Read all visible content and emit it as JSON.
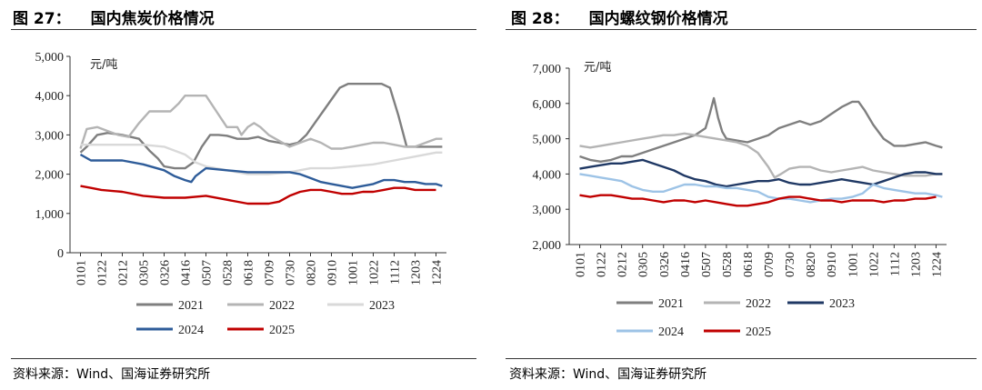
{
  "left": {
    "title_num": "图 27：",
    "title_text": "国内焦炭价格情况",
    "source": "资料来源：Wind、国海证券研究所"
  },
  "right": {
    "title_num": "图 28：",
    "title_text": "国内螺纹钢价格情况",
    "source": "资料来源：Wind、国海证券研究所"
  },
  "colors": {
    "2021": "#7f7f7f",
    "2022": "#b4b4b4",
    "2023": "#d9d9d9",
    "2023b": "#1f3864",
    "2024": "#2e5c99",
    "2024b": "#9dc3e6",
    "2025": "#c00000"
  },
  "chart_data": [
    {
      "type": "line",
      "title": "国内焦炭价格情况",
      "unit_label": "元/吨",
      "ylim": [
        0,
        5000
      ],
      "yticks": [
        0,
        1000,
        2000,
        3000,
        4000,
        5000
      ],
      "ytick_labels": [
        "0",
        "1,000",
        "2,000",
        "3,000",
        "4,000",
        "5,000"
      ],
      "x_ticks": [
        "0101",
        "0122",
        "0212",
        "0305",
        "0326",
        "0416",
        "0507",
        "0528",
        "0618",
        "0709",
        "0730",
        "0820",
        "0910",
        "1001",
        "1022",
        "1112",
        "1203",
        "1224"
      ],
      "legend": [
        "2021",
        "2022",
        "2023",
        "2024",
        "2025"
      ],
      "series": [
        {
          "name": "2021",
          "color_key": "2021",
          "x": [
            0,
            0.3,
            0.8,
            1.3,
            2.0,
            2.8,
            3.3,
            3.7,
            4.0,
            4.5,
            5.0,
            5.4,
            5.8,
            6.2,
            6.6,
            7.0,
            7.5,
            8.0,
            8.5,
            9.0,
            9.5,
            10.0,
            10.4,
            10.8,
            11.2,
            11.6,
            12.0,
            12.4,
            12.8,
            13.2,
            13.6,
            14.0,
            14.4,
            14.8,
            15.2,
            15.6,
            16.0,
            16.5,
            17.0,
            17.3
          ],
          "values": [
            2550,
            2700,
            3000,
            3050,
            3000,
            2900,
            2600,
            2400,
            2200,
            2150,
            2150,
            2300,
            2700,
            3000,
            3000,
            2980,
            2900,
            2900,
            2950,
            2850,
            2800,
            2750,
            2800,
            3000,
            3300,
            3600,
            3900,
            4200,
            4300,
            4300,
            4300,
            4300,
            4300,
            4200,
            3500,
            2700,
            2700,
            2700,
            2700,
            2700
          ]
        },
        {
          "name": "2022",
          "color_key": "2022",
          "x": [
            0,
            0.3,
            0.8,
            1.3,
            1.8,
            2.3,
            2.8,
            3.3,
            3.8,
            4.3,
            4.7,
            5.0,
            5.5,
            6.0,
            6.5,
            7.0,
            7.5,
            7.7,
            8.0,
            8.3,
            8.6,
            9.0,
            9.5,
            10.0,
            10.5,
            11.0,
            11.5,
            12.0,
            12.5,
            13.0,
            13.5,
            14.0,
            14.5,
            15.0,
            15.5,
            16.0,
            16.5,
            17.0,
            17.3
          ],
          "values": [
            2650,
            3150,
            3200,
            3100,
            3000,
            2950,
            3300,
            3600,
            3600,
            3600,
            3800,
            4000,
            4000,
            4000,
            3600,
            3200,
            3200,
            3000,
            3200,
            3300,
            3200,
            3000,
            2850,
            2700,
            2800,
            2900,
            2800,
            2650,
            2650,
            2700,
            2750,
            2800,
            2800,
            2750,
            2700,
            2700,
            2800,
            2900,
            2900
          ]
        },
        {
          "name": "2023",
          "color_key": "2023",
          "x": [
            0,
            1.0,
            2.0,
            3.0,
            4.0,
            5.0,
            5.5,
            6.0,
            7.0,
            8.0,
            9.0,
            10.0,
            11.0,
            12.0,
            13.0,
            14.0,
            15.0,
            16.0,
            17.0,
            17.3
          ],
          "values": [
            2750,
            2750,
            2750,
            2750,
            2700,
            2500,
            2300,
            2200,
            2100,
            2000,
            2000,
            2050,
            2150,
            2150,
            2200,
            2250,
            2350,
            2450,
            2550,
            2550
          ]
        },
        {
          "name": "2024",
          "color_key": "2024",
          "x": [
            0,
            0.5,
            1.0,
            2.0,
            3.0,
            4.0,
            4.5,
            5.0,
            5.3,
            5.5,
            6.0,
            7.0,
            8.0,
            9.0,
            10.0,
            10.5,
            11.0,
            11.5,
            12.0,
            12.5,
            13.0,
            13.5,
            14.0,
            14.5,
            15.0,
            15.5,
            16.0,
            16.5,
            17.0,
            17.3
          ],
          "values": [
            2500,
            2350,
            2350,
            2350,
            2250,
            2100,
            1950,
            1850,
            1800,
            1950,
            2150,
            2100,
            2050,
            2050,
            2050,
            2000,
            1900,
            1800,
            1750,
            1700,
            1650,
            1700,
            1750,
            1850,
            1850,
            1800,
            1800,
            1750,
            1750,
            1700
          ]
        },
        {
          "name": "2025",
          "color_key": "2025",
          "x": [
            0,
            0.5,
            1.0,
            2.0,
            3.0,
            4.0,
            5.0,
            6.0,
            7.0,
            8.0,
            8.5,
            9.0,
            9.5,
            10.0,
            10.5,
            11.0,
            11.5,
            12.0,
            12.5,
            13.0,
            13.5,
            14.0,
            14.5,
            15.0,
            15.5,
            16.0,
            16.5,
            17.0
          ],
          "values": [
            1700,
            1650,
            1600,
            1550,
            1450,
            1400,
            1400,
            1450,
            1350,
            1250,
            1250,
            1250,
            1300,
            1450,
            1550,
            1600,
            1600,
            1550,
            1500,
            1500,
            1550,
            1550,
            1600,
            1650,
            1650,
            1600,
            1600,
            1600
          ]
        }
      ]
    },
    {
      "type": "line",
      "title": "国内螺纹钢价格情况",
      "unit_label": "元/吨",
      "ylim": [
        2000,
        7000
      ],
      "yticks": [
        2000,
        3000,
        4000,
        5000,
        6000,
        7000
      ],
      "ytick_labels": [
        "2,000",
        "3,000",
        "4,000",
        "5,000",
        "6,000",
        "7,000"
      ],
      "x_ticks": [
        "0101",
        "0122",
        "0212",
        "0305",
        "0326",
        "0416",
        "0507",
        "0528",
        "0618",
        "0709",
        "0730",
        "0820",
        "0910",
        "1001",
        "1022",
        "1112",
        "1203",
        "1224"
      ],
      "legend": [
        "2021",
        "2022",
        "2023",
        "2024",
        "2025"
      ],
      "series": [
        {
          "name": "2021",
          "color_key": "2021",
          "x": [
            0,
            0.5,
            1.0,
            1.5,
            2.0,
            2.5,
            3.0,
            3.5,
            4.0,
            4.5,
            5.0,
            5.5,
            6.0,
            6.2,
            6.4,
            6.6,
            6.8,
            7.0,
            7.5,
            8.0,
            8.5,
            9.0,
            9.5,
            10.0,
            10.5,
            11.0,
            11.5,
            12.0,
            12.5,
            13.0,
            13.3,
            13.6,
            14.0,
            14.5,
            15.0,
            15.5,
            16.0,
            16.5,
            17.0,
            17.3
          ],
          "values": [
            4500,
            4400,
            4350,
            4400,
            4500,
            4500,
            4600,
            4700,
            4800,
            4900,
            5000,
            5100,
            5300,
            5700,
            6150,
            5600,
            5200,
            5000,
            4950,
            4900,
            5000,
            5100,
            5300,
            5400,
            5500,
            5400,
            5500,
            5700,
            5900,
            6050,
            6050,
            5800,
            5400,
            5000,
            4800,
            4800,
            4850,
            4900,
            4800,
            4750
          ]
        },
        {
          "name": "2022",
          "color_key": "2022",
          "x": [
            0,
            0.5,
            1.0,
            1.5,
            2.0,
            2.5,
            3.0,
            3.5,
            4.0,
            4.5,
            5.0,
            5.5,
            6.0,
            6.5,
            7.0,
            7.5,
            8.0,
            8.5,
            9.0,
            9.3,
            9.6,
            10.0,
            10.5,
            11.0,
            11.5,
            12.0,
            12.5,
            13.0,
            13.5,
            14.0,
            14.5,
            15.0,
            15.5,
            16.0,
            16.5,
            17.0,
            17.3
          ],
          "values": [
            4800,
            4750,
            4800,
            4850,
            4900,
            4950,
            5000,
            5050,
            5100,
            5100,
            5150,
            5100,
            5050,
            5000,
            4950,
            4900,
            4800,
            4600,
            4200,
            3900,
            4000,
            4150,
            4200,
            4200,
            4100,
            4050,
            4100,
            4150,
            4200,
            4100,
            4050,
            4000,
            3950,
            3950,
            3950,
            4000,
            4000
          ]
        },
        {
          "name": "2023",
          "color_key": "2023b",
          "x": [
            0,
            0.5,
            1.0,
            1.5,
            2.0,
            2.5,
            3.0,
            3.5,
            4.0,
            4.5,
            5.0,
            5.5,
            6.0,
            6.5,
            7.0,
            7.5,
            8.0,
            8.5,
            9.0,
            9.5,
            10.0,
            10.5,
            11.0,
            11.5,
            12.0,
            12.5,
            13.0,
            13.5,
            14.0,
            14.5,
            15.0,
            15.5,
            16.0,
            16.5,
            17.0,
            17.3
          ],
          "values": [
            4150,
            4200,
            4250,
            4300,
            4300,
            4350,
            4400,
            4300,
            4200,
            4100,
            3950,
            3850,
            3800,
            3700,
            3650,
            3700,
            3750,
            3800,
            3800,
            3850,
            3750,
            3700,
            3700,
            3750,
            3800,
            3850,
            3800,
            3750,
            3700,
            3800,
            3900,
            4000,
            4050,
            4050,
            4000,
            4000
          ]
        },
        {
          "name": "2024",
          "color_key": "2024b",
          "x": [
            0,
            0.5,
            1.0,
            1.5,
            2.0,
            2.5,
            3.0,
            3.5,
            4.0,
            4.5,
            5.0,
            5.5,
            6.0,
            6.5,
            7.0,
            7.5,
            8.0,
            8.5,
            9.0,
            9.5,
            10.0,
            10.5,
            11.0,
            11.5,
            12.0,
            12.5,
            13.0,
            13.5,
            14.0,
            14.5,
            15.0,
            15.5,
            16.0,
            16.5,
            17.0,
            17.3
          ],
          "values": [
            4000,
            3950,
            3900,
            3850,
            3800,
            3650,
            3550,
            3500,
            3500,
            3600,
            3700,
            3700,
            3650,
            3650,
            3600,
            3600,
            3550,
            3500,
            3350,
            3300,
            3300,
            3250,
            3200,
            3250,
            3300,
            3300,
            3350,
            3450,
            3700,
            3600,
            3550,
            3500,
            3450,
            3450,
            3400,
            3350
          ]
        },
        {
          "name": "2025",
          "color_key": "2025",
          "x": [
            0,
            0.5,
            1.0,
            1.5,
            2.0,
            2.5,
            3.0,
            3.5,
            4.0,
            4.5,
            5.0,
            5.5,
            6.0,
            6.5,
            7.0,
            7.5,
            8.0,
            8.5,
            9.0,
            9.5,
            10.0,
            10.5,
            11.0,
            11.5,
            12.0,
            12.5,
            13.0,
            13.5,
            14.0,
            14.5,
            15.0,
            15.5,
            16.0,
            16.5,
            17.0
          ],
          "values": [
            3400,
            3350,
            3400,
            3400,
            3350,
            3300,
            3300,
            3250,
            3200,
            3250,
            3250,
            3200,
            3250,
            3200,
            3150,
            3100,
            3100,
            3150,
            3200,
            3300,
            3350,
            3350,
            3300,
            3250,
            3250,
            3200,
            3250,
            3250,
            3250,
            3200,
            3250,
            3250,
            3300,
            3300,
            3350
          ]
        }
      ]
    }
  ]
}
